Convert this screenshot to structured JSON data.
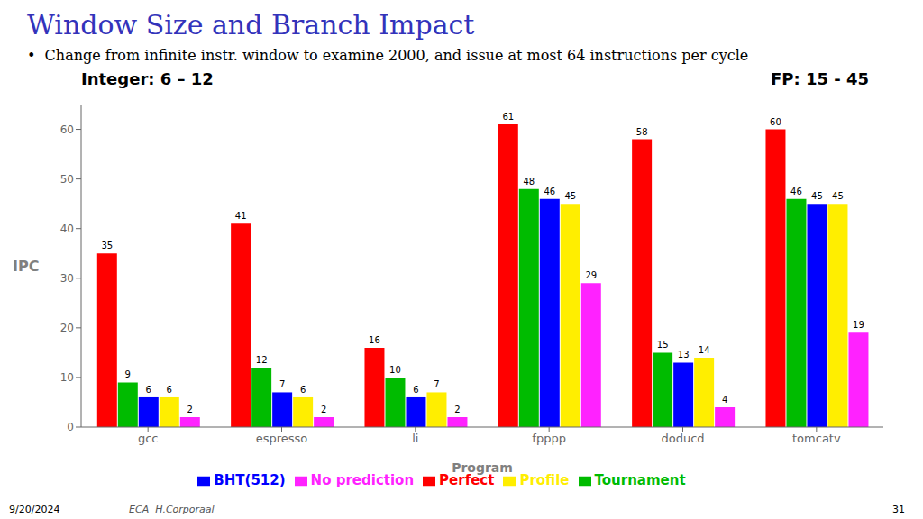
{
  "chart_data": {
    "type": "bar",
    "title": "Window Size and Branch Impact",
    "subtitle": "•  Change from infinite instr. window to examine 2000, and issue at most 64 instructions per cycle",
    "xlabel": "Program",
    "ylabel": "IPC",
    "annotations": [
      "Integer: 6 – 12",
      "FP: 15 - 45",
      "9/20/2024",
      "ECA  H.Corporaal",
      "31"
    ],
    "categories": [
      "gcc",
      "espresso",
      "li",
      "fpppp",
      "doducd",
      "tomcatv"
    ],
    "series": [
      {
        "name": "Perfect",
        "color": "#ff0000",
        "values": [
          35,
          41,
          16,
          61,
          58,
          60
        ]
      },
      {
        "name": "Tournament",
        "color": "#00bb00",
        "values": [
          9,
          12,
          10,
          48,
          15,
          46
        ]
      },
      {
        "name": "BHT(512)",
        "color": "#0000ff",
        "values": [
          6,
          7,
          6,
          46,
          13,
          45
        ]
      },
      {
        "name": "Profile",
        "color": "#ffee00",
        "values": [
          6,
          6,
          7,
          45,
          14,
          45
        ]
      },
      {
        "name": "No prediction",
        "color": "#ff22ff",
        "values": [
          2,
          2,
          2,
          29,
          4,
          19
        ]
      }
    ],
    "ylim": [
      0,
      65
    ],
    "yticks": [
      0,
      10,
      20,
      30,
      40,
      50,
      60
    ],
    "grid": false,
    "legend": "bottom",
    "data_labels": true
  }
}
